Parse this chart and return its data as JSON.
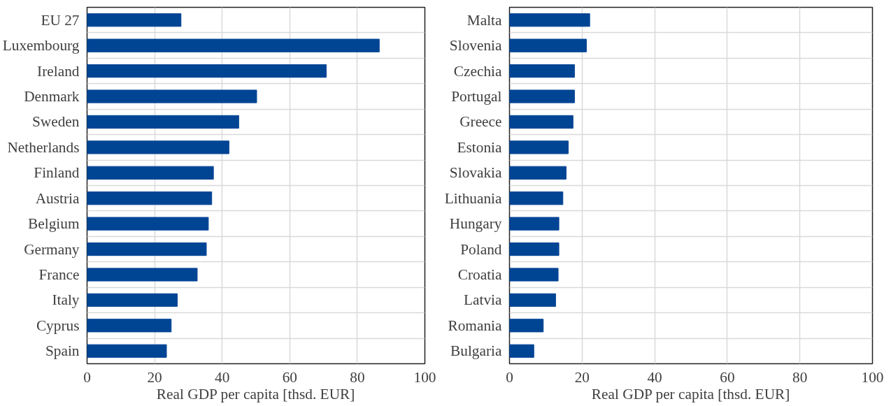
{
  "chart_data": [
    {
      "type": "bar",
      "orientation": "horizontal",
      "xlabel": "Real GDP per capita [thsd. EUR]",
      "categories": [
        "EU 27",
        "Luxembourg",
        "Ireland",
        "Denmark",
        "Sweden",
        "Netherlands",
        "Finland",
        "Austria",
        "Belgium",
        "Germany",
        "France",
        "Italy",
        "Cyprus",
        "Spain"
      ],
      "values": [
        27.8,
        86.5,
        70.8,
        50.2,
        44.9,
        42.0,
        37.4,
        36.9,
        35.9,
        35.3,
        32.6,
        26.7,
        24.9,
        23.5
      ],
      "color": "#004494",
      "xlim": [
        0,
        100
      ],
      "xticks": [
        0,
        20,
        40,
        60,
        80,
        100
      ],
      "grid": true
    },
    {
      "type": "bar",
      "orientation": "horizontal",
      "xlabel": "Real GDP per capita [thsd. EUR]",
      "categories": [
        "Malta",
        "Slovenia",
        "Czechia",
        "Portugal",
        "Greece",
        "Estonia",
        "Slovakia",
        "Lithuania",
        "Hungary",
        "Poland",
        "Croatia",
        "Latvia",
        "Romania",
        "Bulgaria"
      ],
      "values": [
        22.1,
        21.2,
        17.9,
        17.9,
        17.5,
        16.2,
        15.6,
        14.7,
        13.6,
        13.6,
        13.4,
        12.7,
        9.3,
        6.7
      ],
      "color": "#004494",
      "xlim": [
        0,
        100
      ],
      "xticks": [
        0,
        20,
        40,
        60,
        80,
        100
      ],
      "grid": true
    }
  ]
}
